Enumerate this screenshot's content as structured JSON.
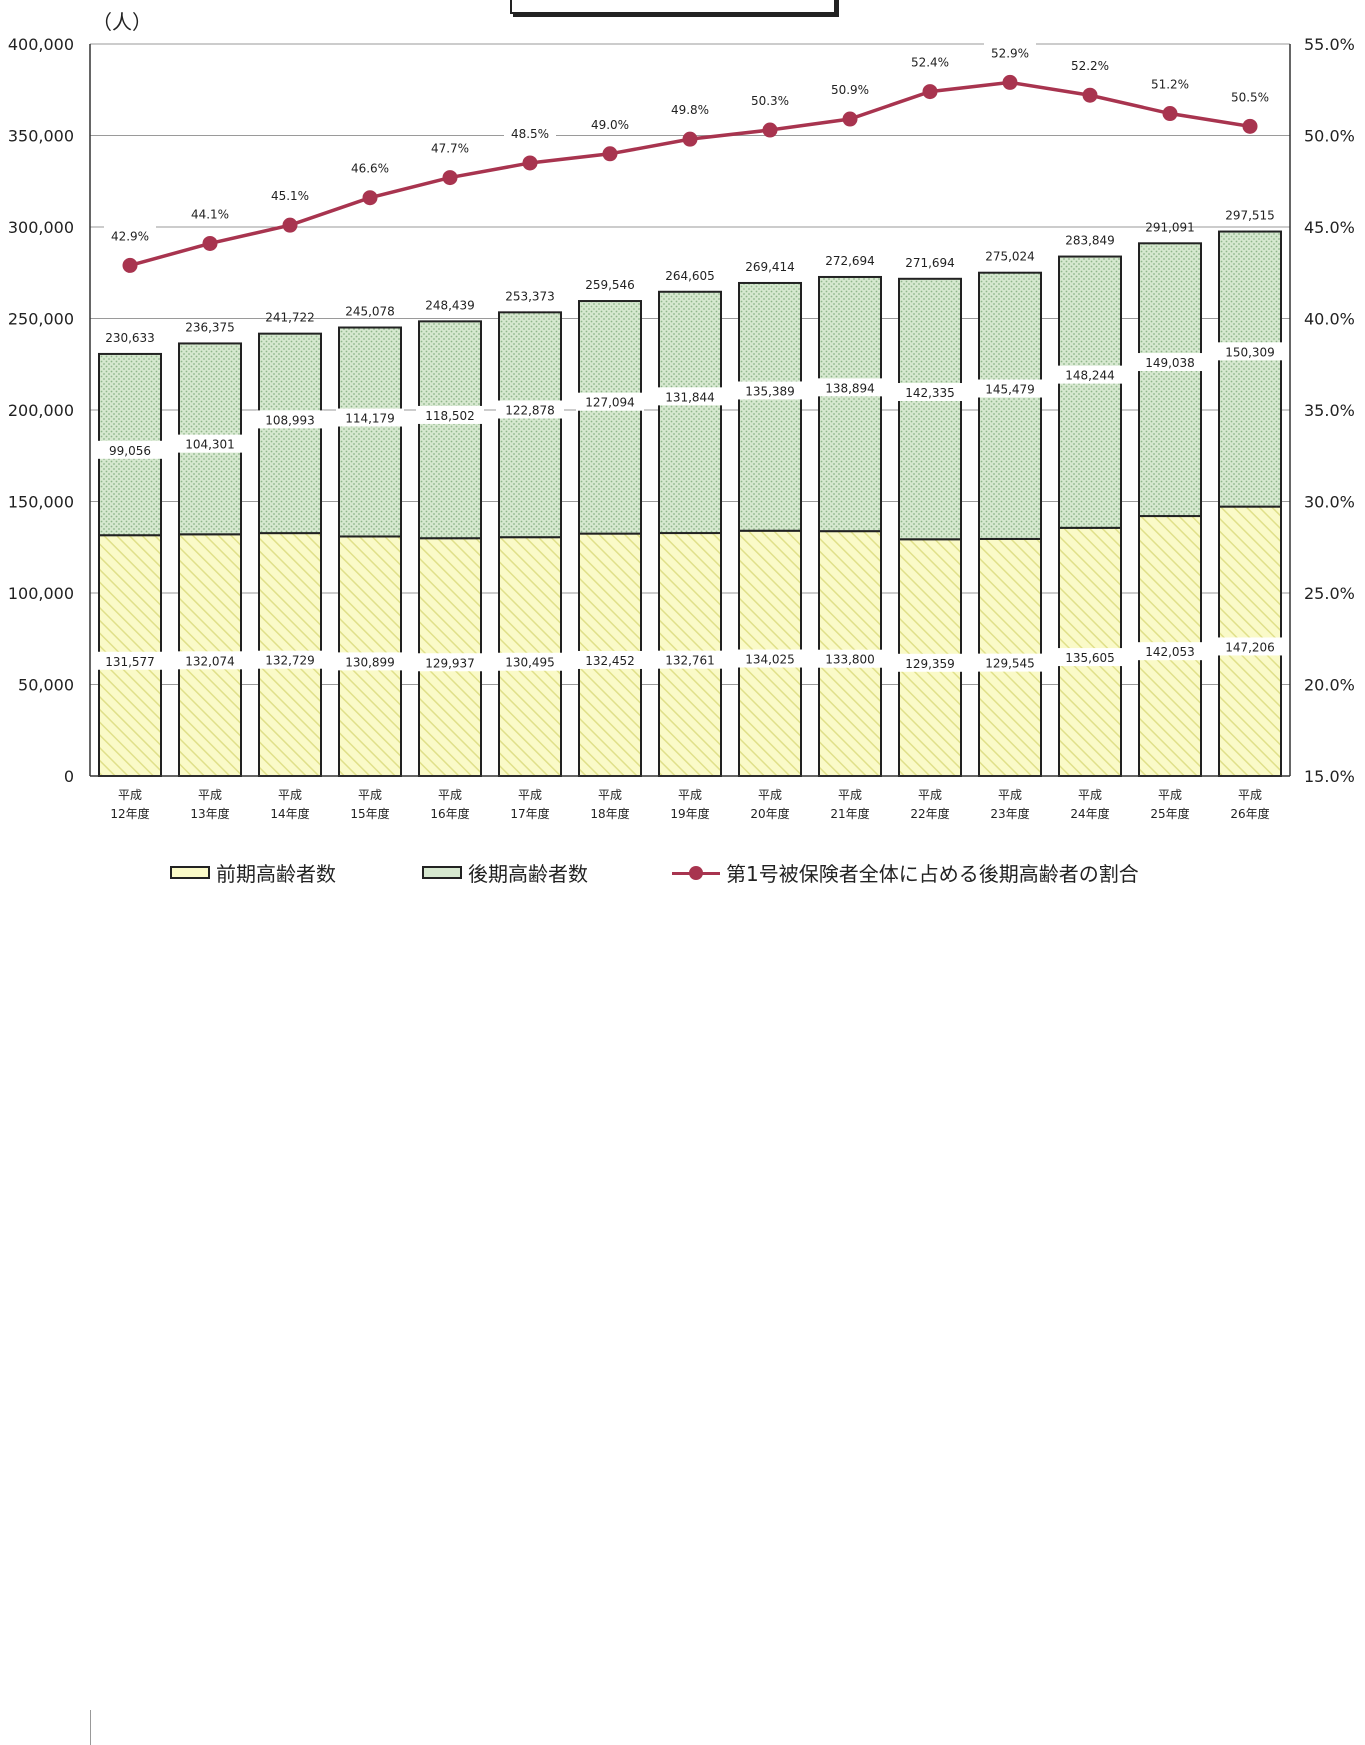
{
  "unit_label": "（人）",
  "legend": {
    "early": "前期高齢者数",
    "late": "後期高齢者数",
    "ratio": "第1号被保険者全体に占める後期高齢者の割合"
  },
  "colors": {
    "early_fill": "#fafac8",
    "early_hatch": "#e0e08a",
    "late_fill": "#d6e8cf",
    "late_dot": "#8fb58a",
    "line": "#a8344f"
  },
  "chart_data": {
    "type": "bar",
    "stacked": true,
    "categories": [
      [
        "平成",
        "12年度"
      ],
      [
        "平成",
        "13年度"
      ],
      [
        "平成",
        "14年度"
      ],
      [
        "平成",
        "15年度"
      ],
      [
        "平成",
        "16年度"
      ],
      [
        "平成",
        "17年度"
      ],
      [
        "平成",
        "18年度"
      ],
      [
        "平成",
        "19年度"
      ],
      [
        "平成",
        "20年度"
      ],
      [
        "平成",
        "21年度"
      ],
      [
        "平成",
        "22年度"
      ],
      [
        "平成",
        "23年度"
      ],
      [
        "平成",
        "24年度"
      ],
      [
        "平成",
        "25年度"
      ],
      [
        "平成",
        "26年度"
      ]
    ],
    "series": [
      {
        "name": "前期高齢者数",
        "values": [
          131577,
          132074,
          132729,
          130899,
          129937,
          130495,
          132452,
          132761,
          134025,
          133800,
          129359,
          129545,
          135605,
          142053,
          147206
        ],
        "labels": [
          "131,577",
          "132,074",
          "132,729",
          "130,899",
          "129,937",
          "130,495",
          "132,452",
          "132,761",
          "134,025",
          "133,800",
          "129,359",
          "129,545",
          "135,605",
          "142,053",
          "147,206"
        ]
      },
      {
        "name": "後期高齢者数",
        "values": [
          99056,
          104301,
          108993,
          114179,
          118502,
          122878,
          127094,
          131844,
          135389,
          138894,
          142335,
          145479,
          148244,
          149038,
          150309
        ],
        "labels": [
          "99,056",
          "104,301",
          "108,993",
          "114,179",
          "118,502",
          "122,878",
          "127,094",
          "131,844",
          "135,389",
          "138,894",
          "142,335",
          "145,479",
          "148,244",
          "149,038",
          "150,309"
        ]
      }
    ],
    "totals": [
      230633,
      236375,
      241722,
      245078,
      248439,
      253373,
      259546,
      264605,
      269414,
      272694,
      271694,
      275024,
      283849,
      291091,
      297515
    ],
    "total_labels": [
      "230,633",
      "236,375",
      "241,722",
      "245,078",
      "248,439",
      "253,373",
      "259,546",
      "264,605",
      "269,414",
      "272,694",
      "271,694",
      "275,024",
      "283,849",
      "291,091",
      "297,515"
    ],
    "line_series": {
      "name": "第1号被保険者全体に占める後期高齢者の割合",
      "axis": "right",
      "values": [
        42.9,
        44.1,
        45.1,
        46.6,
        47.7,
        48.5,
        49.0,
        49.8,
        50.3,
        50.9,
        52.4,
        52.9,
        52.2,
        51.2,
        50.5
      ],
      "labels": [
        "42.9%",
        "44.1%",
        "45.1%",
        "46.6%",
        "47.7%",
        "48.5%",
        "49.0%",
        "49.8%",
        "50.3%",
        "50.9%",
        "52.4%",
        "52.9%",
        "52.2%",
        "51.2%",
        "50.5%"
      ]
    },
    "ylim": [
      0,
      400000
    ],
    "y_ticks": [
      "0",
      "50,000",
      "100,000",
      "150,000",
      "200,000",
      "250,000",
      "300,000",
      "350,000",
      "400,000"
    ],
    "y2lim": [
      15.0,
      55.0
    ],
    "y2_ticks": [
      "15.0%",
      "20.0%",
      "25.0%",
      "30.0%",
      "35.0%",
      "40.0%",
      "45.0%",
      "50.0%",
      "55.0%"
    ],
    "grid": true,
    "legend_position": "bottom"
  }
}
